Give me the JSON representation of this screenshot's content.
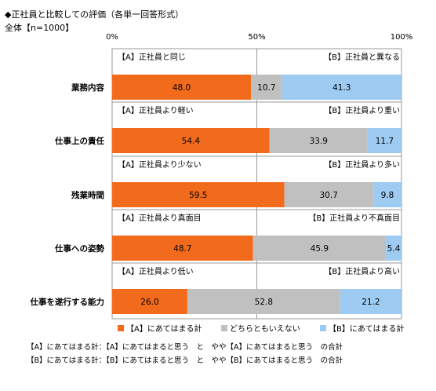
{
  "header": {
    "title": "◆正社員と比較しての評価（各単一回答形式）",
    "base": "全体【n=1000】"
  },
  "chart_data": {
    "type": "bar",
    "stacked": true,
    "orientation": "horizontal",
    "unit": "%",
    "xlim": [
      0,
      100
    ],
    "ticks": [
      "0%",
      "50%",
      "100%"
    ],
    "grid": true,
    "categories": [
      "業務内容",
      "仕事上の責任",
      "残業時間",
      "仕事への姿勢",
      "仕事を遂行する能力"
    ],
    "pair_labels": [
      {
        "left": "【A】正社員と同じ",
        "right": "【B】正社員と異なる"
      },
      {
        "left": "【A】正社員より軽い",
        "right": "【B】正社員より重い"
      },
      {
        "left": "【A】正社員より少ない",
        "right": "【B】正社員より多い"
      },
      {
        "left": "【A】正社員より真面目",
        "right": "【B】正社員より不真面目"
      },
      {
        "left": "【A】正社員より低い",
        "right": "【B】正社員より高い"
      }
    ],
    "series": [
      {
        "name": "【A】にあてはまる計",
        "color": "#f26b1d",
        "values": [
          48.0,
          54.4,
          59.5,
          48.7,
          26.0
        ],
        "labels": [
          "48.0",
          "54.4",
          "59.5",
          "48.7",
          "26.0"
        ]
      },
      {
        "name": "どちらともいえない",
        "color": "#c0c0c0",
        "values": [
          10.7,
          33.9,
          30.7,
          45.9,
          52.8
        ],
        "labels": [
          "10.7",
          "33.9",
          "30.7",
          "45.9",
          "52.8"
        ]
      },
      {
        "name": "【B】にあてはまる計",
        "color": "#9ecbf2",
        "values": [
          41.3,
          11.7,
          9.8,
          5.4,
          21.2
        ],
        "labels": [
          "41.3",
          "11.7",
          "9.8",
          "5.4",
          "21.2"
        ]
      }
    ],
    "legend": {
      "position": "bottom"
    }
  },
  "notes": [
    "【A】にあてはまる計：【A】にあてはまると思う　と　やや【A】にあてはまると思う　の合計",
    "【B】にあてはまる計：【B】にあてはまると思う　と　やや【B】にあてはまると思う　の合計"
  ]
}
